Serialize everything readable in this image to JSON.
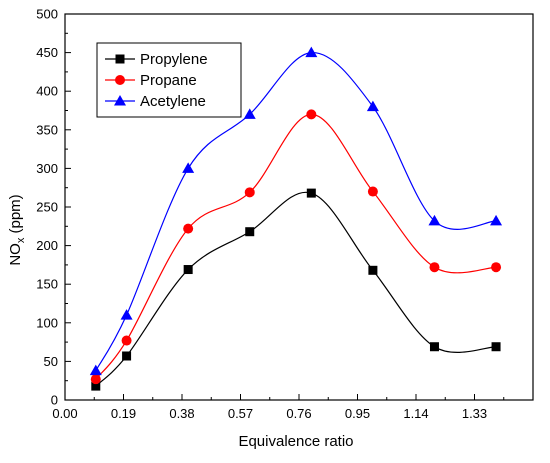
{
  "chart_data": {
    "type": "line",
    "xlabel": "Equivalence ratio",
    "ylabel": "NO",
    "ylabel_subscript": "x",
    "ylabel_unit": " (ppm)",
    "xlim": [
      0.0,
      1.52
    ],
    "ylim": [
      0,
      500
    ],
    "xticks": [
      "0.00",
      "0.19",
      "0.38",
      "0.57",
      "0.76",
      "0.95",
      "1.14",
      "1.33"
    ],
    "yticks": [
      "0",
      "50",
      "100",
      "150",
      "200",
      "250",
      "300",
      "350",
      "400",
      "450",
      "500"
    ],
    "legend_position": "top-left",
    "grid": false,
    "series": [
      {
        "name": "Propylene",
        "marker": "square",
        "color": "#000000",
        "x": [
          0.1,
          0.2,
          0.4,
          0.6,
          0.8,
          1.0,
          1.2,
          1.4
        ],
        "y": [
          18,
          57,
          169,
          218,
          268,
          168,
          69,
          69
        ]
      },
      {
        "name": "Propane",
        "marker": "circle",
        "color": "#ff0000",
        "x": [
          0.1,
          0.2,
          0.4,
          0.6,
          0.8,
          1.0,
          1.2,
          1.4
        ],
        "y": [
          27,
          77,
          222,
          269,
          370,
          270,
          172,
          172
        ]
      },
      {
        "name": "Acetylene",
        "marker": "triangle",
        "color": "#0000ff",
        "x": [
          0.1,
          0.2,
          0.4,
          0.6,
          0.8,
          1.0,
          1.2,
          1.4
        ],
        "y": [
          38,
          110,
          300,
          370,
          450,
          380,
          232,
          232
        ]
      }
    ]
  }
}
